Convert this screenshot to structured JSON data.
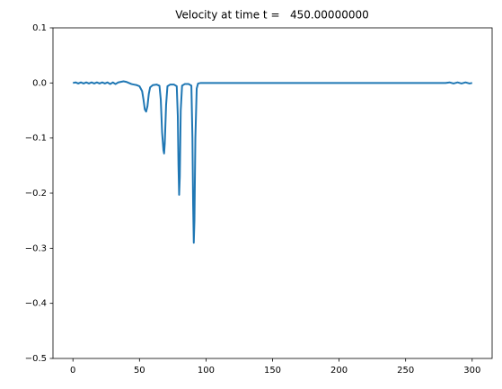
{
  "chart_data": {
    "type": "line",
    "title": "Velocity at time t =   450.00000000",
    "x": [
      0,
      2,
      4,
      6,
      8,
      10,
      12,
      14,
      16,
      18,
      20,
      22,
      24,
      26,
      28,
      30,
      32,
      34,
      36,
      38,
      40,
      42,
      44,
      46,
      48,
      50,
      52,
      53,
      54,
      55,
      56,
      57,
      58,
      60,
      63,
      65,
      66,
      67,
      68,
      68.5,
      69,
      70,
      71,
      73,
      76,
      78,
      78.8,
      79.3,
      79.8,
      80.3,
      81,
      82,
      84,
      87,
      89,
      89.8,
      90.3,
      90.8,
      91.3,
      92,
      93,
      94,
      96,
      100,
      150,
      200,
      250,
      280,
      283,
      286,
      289,
      292,
      295,
      298,
      300
    ],
    "series": [
      {
        "color": "#1f77b4",
        "values": [
          0,
          0.001,
          -0.001,
          0.001,
          -0.001,
          0.001,
          -0.001,
          0.001,
          -0.001,
          0.001,
          -0.001,
          0.001,
          -0.001,
          0.001,
          -0.002,
          0.001,
          -0.002,
          0.001,
          0.002,
          0.003,
          0.002,
          0,
          -0.002,
          -0.003,
          -0.004,
          -0.006,
          -0.015,
          -0.03,
          -0.048,
          -0.052,
          -0.042,
          -0.02,
          -0.008,
          -0.004,
          -0.003,
          -0.005,
          -0.03,
          -0.09,
          -0.122,
          -0.128,
          -0.11,
          -0.04,
          -0.006,
          -0.003,
          -0.003,
          -0.006,
          -0.06,
          -0.15,
          -0.203,
          -0.17,
          -0.05,
          -0.005,
          -0.002,
          -0.002,
          -0.005,
          -0.1,
          -0.22,
          -0.29,
          -0.25,
          -0.1,
          -0.01,
          -0.001,
          0,
          0,
          0,
          0,
          0,
          0,
          0.001,
          -0.001,
          0.001,
          -0.001,
          0.001,
          -0.001,
          0
        ]
      }
    ],
    "xlim": [
      -15,
      315
    ],
    "ylim": [
      -0.5,
      0.1
    ],
    "xticks": [
      0,
      50,
      100,
      150,
      200,
      250,
      300
    ],
    "yticks": [
      {
        "value": 0.1,
        "label": "0.1"
      },
      {
        "value": 0,
        "label": "0.0"
      },
      {
        "value": -0.1,
        "label": "−0.1"
      },
      {
        "value": -0.2,
        "label": "−0.2"
      },
      {
        "value": -0.3,
        "label": "−0.3"
      },
      {
        "value": -0.4,
        "label": "−0.4"
      },
      {
        "value": -0.5,
        "label": "−0.5"
      }
    ],
    "grid": false
  }
}
